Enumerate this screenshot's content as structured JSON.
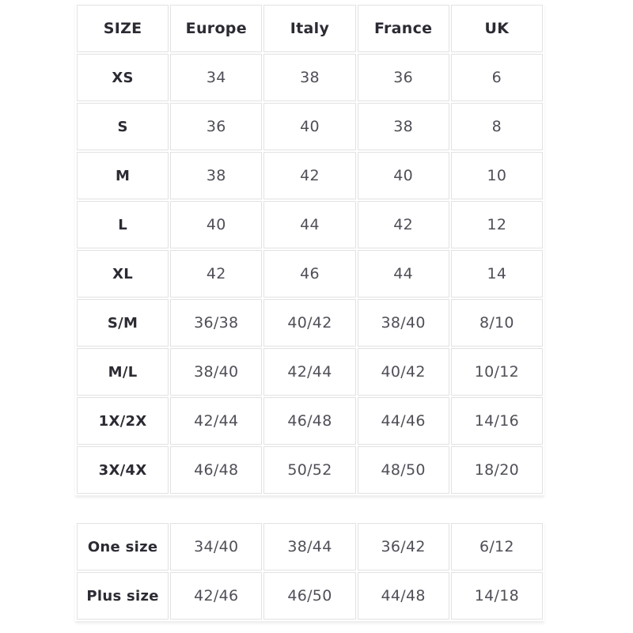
{
  "colors": {
    "background": "#ffffff",
    "cell_border": "#e2e2e2",
    "label_text": "#2b2b33",
    "value_text": "#4f4f58"
  },
  "size_chart": {
    "columns": [
      "SIZE",
      "Europe",
      "Italy",
      "France",
      "UK"
    ],
    "rows": [
      {
        "label": "XS",
        "values": [
          "34",
          "38",
          "36",
          "6"
        ]
      },
      {
        "label": "S",
        "values": [
          "36",
          "40",
          "38",
          "8"
        ]
      },
      {
        "label": "M",
        "values": [
          "38",
          "42",
          "40",
          "10"
        ]
      },
      {
        "label": "L",
        "values": [
          "40",
          "44",
          "42",
          "12"
        ]
      },
      {
        "label": "XL",
        "values": [
          "42",
          "46",
          "44",
          "14"
        ]
      },
      {
        "label": "S/M",
        "values": [
          "36/38",
          "40/42",
          "38/40",
          "8/10"
        ]
      },
      {
        "label": "M/L",
        "values": [
          "38/40",
          "42/44",
          "40/42",
          "10/12"
        ]
      },
      {
        "label": "1X/2X",
        "values": [
          "42/44",
          "46/48",
          "44/46",
          "14/16"
        ]
      },
      {
        "label": "3X/4X",
        "values": [
          "46/48",
          "50/52",
          "48/50",
          "18/20"
        ]
      }
    ]
  },
  "special_sizes": {
    "rows": [
      {
        "label": "One size",
        "values": [
          "34/40",
          "38/44",
          "36/42",
          "6/12"
        ]
      },
      {
        "label": "Plus size",
        "values": [
          "42/46",
          "46/50",
          "44/48",
          "14/18"
        ]
      }
    ]
  }
}
